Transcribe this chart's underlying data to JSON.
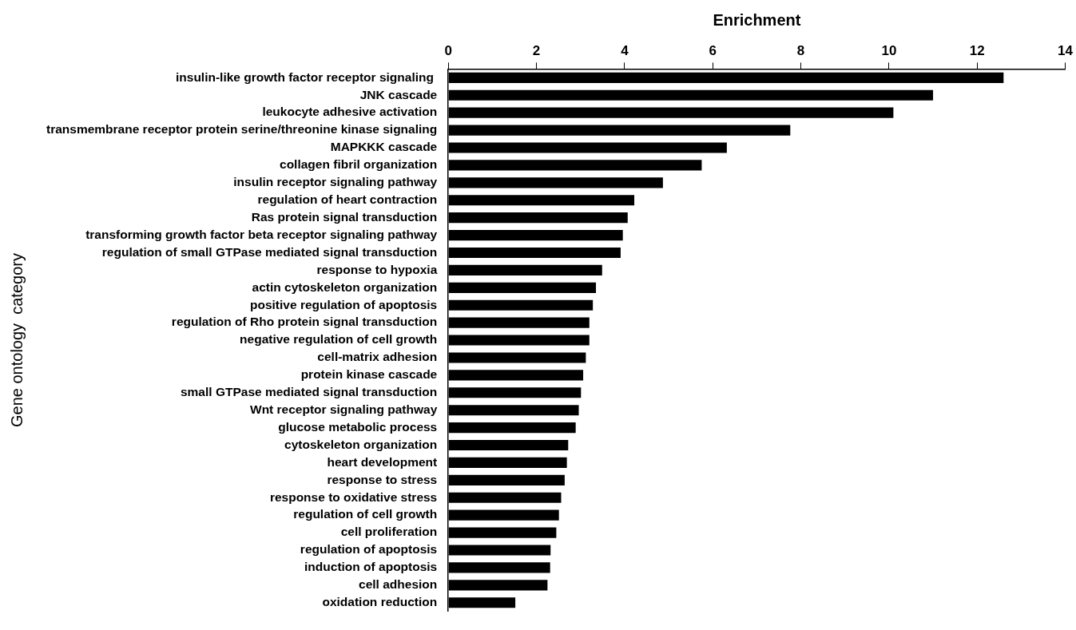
{
  "chart_data": {
    "type": "bar",
    "orientation": "horizontal",
    "xlabel": "Enrichment",
    "ylabel": "Gene ontology  category",
    "categories": [
      "insulin-like growth factor receptor signaling ",
      "JNK cascade",
      "leukocyte adhesive activation",
      "transmembrane receptor protein serine/threonine kinase signaling",
      "MAPKKK cascade",
      "collagen fibril organization",
      "insulin receptor signaling pathway",
      "regulation of heart contraction",
      "Ras protein signal transduction",
      "transforming growth factor beta receptor signaling pathway",
      "regulation of small GTPase mediated signal transduction",
      "response to hypoxia",
      "actin cytoskeleton organization",
      "positive regulation of apoptosis",
      "regulation of Rho protein signal transduction",
      "negative regulation of cell growth",
      "cell-matrix adhesion",
      "protein kinase cascade",
      "small GTPase mediated signal transduction",
      "Wnt receptor signaling pathway",
      "glucose metabolic process",
      "cytoskeleton organization",
      "heart development",
      "response to stress",
      "response to oxidative stress",
      "regulation of cell growth",
      "cell proliferation",
      "regulation of apoptosis",
      "induction of apoptosis",
      "cell adhesion",
      "oxidation reduction"
    ],
    "values": [
      12.6,
      11.0,
      10.1,
      7.76,
      6.32,
      5.75,
      4.87,
      4.22,
      4.07,
      3.96,
      3.91,
      3.49,
      3.35,
      3.28,
      3.2,
      3.2,
      3.12,
      3.06,
      3.01,
      2.96,
      2.89,
      2.72,
      2.69,
      2.64,
      2.56,
      2.51,
      2.45,
      2.32,
      2.31,
      2.25,
      1.52
    ],
    "color": "#000000",
    "xlim": [
      0,
      14
    ],
    "xticks": [
      0,
      2,
      4,
      6,
      8,
      10,
      12,
      14
    ],
    "grid": false,
    "legend": false
  }
}
